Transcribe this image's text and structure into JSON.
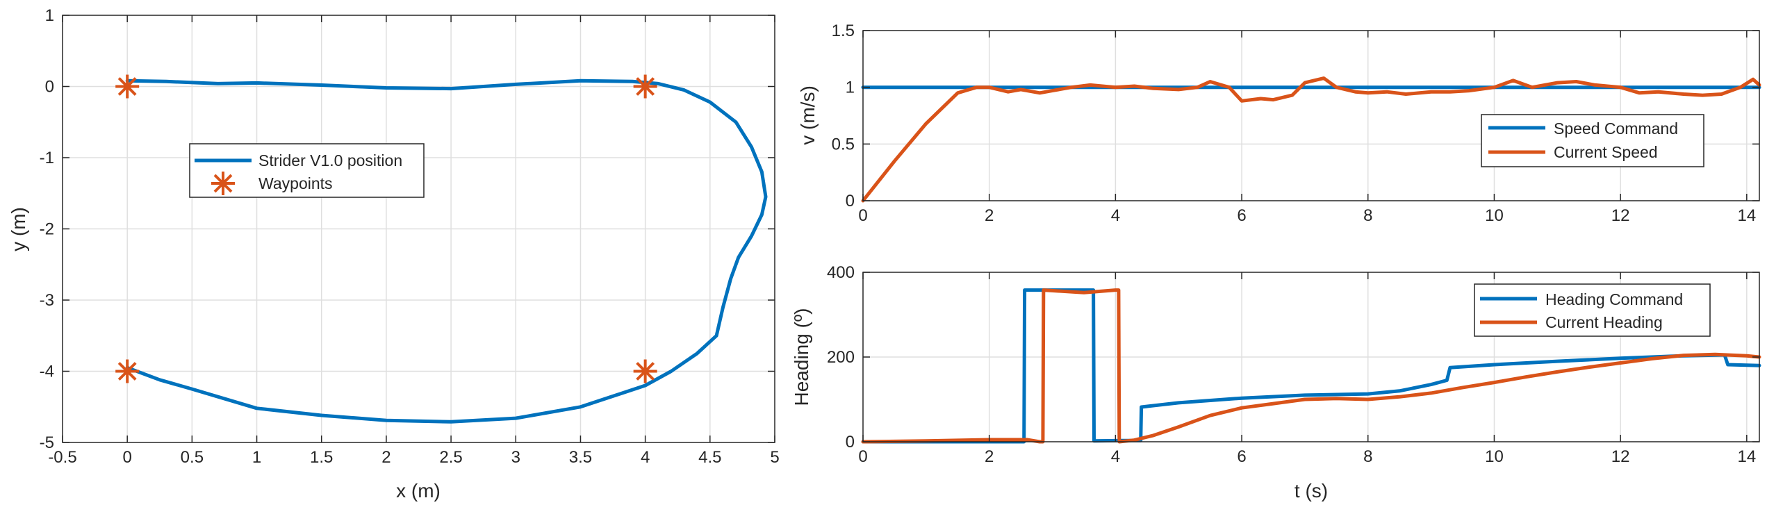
{
  "chart_data": [
    {
      "type": "line",
      "xlabel": "x (m)",
      "ylabel": "y (m)",
      "xlim": [
        -0.5,
        5
      ],
      "ylim": [
        -5,
        1
      ],
      "xticks": [
        -0.5,
        0,
        0.5,
        1,
        1.5,
        2,
        2.5,
        3,
        3.5,
        4,
        4.5,
        5
      ],
      "yticks": [
        -5,
        -4,
        -3,
        -2,
        -1,
        0,
        1
      ],
      "grid": true,
      "legend_placement": "center-left",
      "colors": {
        "primary": "#0072bd",
        "secondary": "#d95319"
      },
      "series": [
        {
          "name": "Strider V1.0 position",
          "kind": "line",
          "x": [
            0,
            0.3,
            0.7,
            1.0,
            1.5,
            2.0,
            2.5,
            3.0,
            3.5,
            3.9,
            4.1,
            4.3,
            4.5,
            4.7,
            4.82,
            4.9,
            4.93,
            4.9,
            4.82,
            4.72,
            4.66,
            4.6,
            4.55,
            4.4,
            4.2,
            4.0,
            3.5,
            3.0,
            2.5,
            2.0,
            1.5,
            1.0,
            0.5,
            0.25,
            0
          ],
          "y": [
            0.08,
            0.07,
            0.04,
            0.05,
            0.02,
            -0.02,
            -0.03,
            0.03,
            0.08,
            0.07,
            0.04,
            -0.05,
            -0.22,
            -0.5,
            -0.85,
            -1.2,
            -1.55,
            -1.8,
            -2.1,
            -2.4,
            -2.7,
            -3.1,
            -3.5,
            -3.75,
            -4.0,
            -4.2,
            -4.5,
            -4.66,
            -4.71,
            -4.69,
            -4.62,
            -4.52,
            -4.25,
            -4.12,
            -3.95
          ]
        },
        {
          "name": "Waypoints",
          "kind": "marker",
          "x": [
            0,
            4,
            4,
            0
          ],
          "y": [
            0,
            0,
            -4,
            -4
          ]
        }
      ]
    },
    {
      "type": "line",
      "xlabel": "",
      "ylabel": "v (m/s)",
      "xlim": [
        0,
        14.2
      ],
      "ylim": [
        0,
        1.5
      ],
      "xticks": [
        0,
        2,
        4,
        6,
        8,
        10,
        12,
        14
      ],
      "yticks": [
        0,
        0.5,
        1,
        1.5
      ],
      "grid": true,
      "legend_placement": "right",
      "colors": {
        "primary": "#0072bd",
        "secondary": "#d95319"
      },
      "series": [
        {
          "name": "Speed Command",
          "x": [
            0,
            14.2
          ],
          "y": [
            1,
            1
          ]
        },
        {
          "name": "Current Speed",
          "x": [
            0,
            0.5,
            1.0,
            1.5,
            1.8,
            2.0,
            2.3,
            2.5,
            2.8,
            3.0,
            3.3,
            3.6,
            4.0,
            4.3,
            4.6,
            5.0,
            5.3,
            5.5,
            5.8,
            6.0,
            6.3,
            6.5,
            6.8,
            7.0,
            7.3,
            7.5,
            7.8,
            8.0,
            8.3,
            8.6,
            9.0,
            9.3,
            9.6,
            10.0,
            10.3,
            10.6,
            11.0,
            11.3,
            11.6,
            12.0,
            12.3,
            12.6,
            13.0,
            13.3,
            13.6,
            13.9,
            14.1,
            14.2
          ],
          "y": [
            0,
            0.35,
            0.68,
            0.95,
            1.0,
            1.0,
            0.96,
            0.98,
            0.95,
            0.97,
            1.0,
            1.02,
            1.0,
            1.01,
            0.99,
            0.98,
            1.0,
            1.05,
            1.0,
            0.88,
            0.9,
            0.89,
            0.93,
            1.04,
            1.08,
            1.0,
            0.96,
            0.95,
            0.96,
            0.94,
            0.96,
            0.96,
            0.97,
            1.0,
            1.06,
            1.0,
            1.04,
            1.05,
            1.02,
            1.0,
            0.95,
            0.96,
            0.94,
            0.93,
            0.94,
            1.0,
            1.07,
            1.02
          ]
        }
      ]
    },
    {
      "type": "line",
      "xlabel": "t (s)",
      "ylabel": "Heading (º)",
      "xlim": [
        0,
        14.2
      ],
      "ylim": [
        0,
        400
      ],
      "xticks": [
        0,
        2,
        4,
        6,
        8,
        10,
        12,
        14
      ],
      "yticks": [
        0,
        200,
        400
      ],
      "grid": true,
      "legend_placement": "top-right",
      "colors": {
        "primary": "#0072bd",
        "secondary": "#d95319"
      },
      "series": [
        {
          "name": "Heading Command",
          "x": [
            0,
            2.5,
            2.55,
            2.56,
            3.6,
            3.65,
            3.66,
            4.1,
            4.4,
            4.41,
            5.0,
            6.0,
            7.0,
            8.0,
            8.5,
            9.0,
            9.25,
            9.3,
            10.0,
            11.0,
            12.0,
            13.0,
            13.65,
            13.7,
            14.2
          ],
          "y": [
            0,
            0,
            0,
            358,
            358,
            358,
            2,
            3,
            3,
            82,
            92,
            103,
            110,
            113,
            120,
            135,
            145,
            175,
            182,
            190,
            197,
            203,
            205,
            182,
            180
          ]
        },
        {
          "name": "Current Heading",
          "x": [
            0,
            1.0,
            2.0,
            2.6,
            2.8,
            2.85,
            2.86,
            3.5,
            4.0,
            4.05,
            4.06,
            4.3,
            4.6,
            5.0,
            5.5,
            6.0,
            6.5,
            7.0,
            7.5,
            8.0,
            8.5,
            9.0,
            9.5,
            10.0,
            10.5,
            11.0,
            11.5,
            12.0,
            12.5,
            13.0,
            13.5,
            14.0,
            14.2
          ],
          "y": [
            0,
            2,
            5,
            5,
            0,
            0,
            358,
            352,
            358,
            358,
            0,
            4,
            15,
            35,
            62,
            80,
            90,
            100,
            102,
            100,
            106,
            115,
            128,
            140,
            153,
            165,
            176,
            186,
            196,
            204,
            206,
            203,
            200
          ]
        }
      ]
    }
  ],
  "plots": [
    {
      "legend_labels": [
        "Strider V1.0 position",
        "Waypoints"
      ]
    },
    {
      "legend_labels": [
        "Speed Command",
        "Current Speed"
      ]
    },
    {
      "legend_labels": [
        "Heading Command",
        "Current Heading"
      ]
    }
  ]
}
